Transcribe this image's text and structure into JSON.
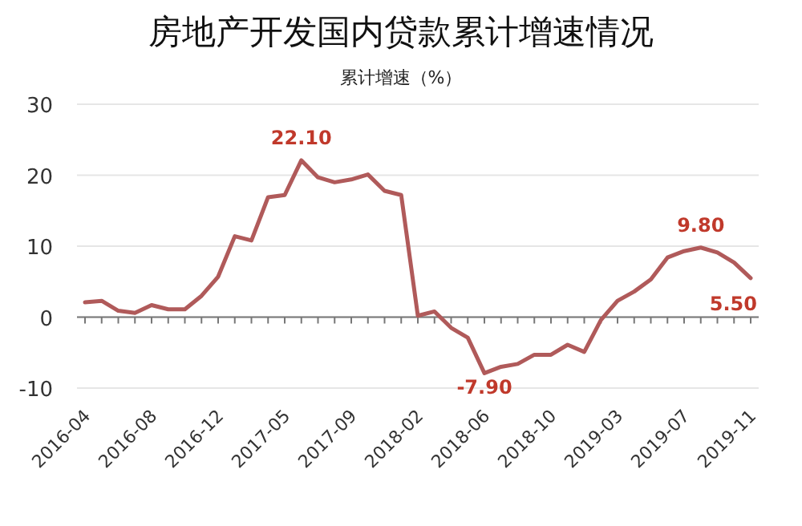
{
  "chart_data": {
    "type": "line",
    "title": "房地产开发国内贷款累计增速情况",
    "ylabel": "累计增速（%）",
    "categories": [
      "2016-04",
      null,
      null,
      null,
      "2016-08",
      null,
      null,
      null,
      "2016-12",
      null,
      null,
      null,
      "2017-05",
      null,
      null,
      null,
      "2017-09",
      null,
      null,
      null,
      "2018-02",
      null,
      null,
      null,
      "2018-06",
      null,
      null,
      null,
      "2018-10",
      null,
      null,
      null,
      "2019-03",
      null,
      null,
      null,
      "2019-07",
      null,
      null,
      null,
      "2019-11"
    ],
    "series": [
      {
        "color": "#b05a5a",
        "values": [
          2.1,
          2.3,
          0.9,
          0.6,
          1.7,
          1.1,
          1.1,
          3.0,
          5.7,
          11.4,
          10.8,
          16.9,
          17.2,
          22.1,
          19.7,
          19.0,
          19.4,
          20.1,
          17.8,
          17.2,
          0.2,
          0.8,
          -1.5,
          -2.9,
          -7.9,
          -7.0,
          -6.6,
          -5.3,
          -5.3,
          -3.9,
          -4.9,
          -0.4,
          2.3,
          3.6,
          5.3,
          8.4,
          9.3,
          9.8,
          9.1,
          7.7,
          5.5
        ],
        "value_labels": [
          null,
          null,
          null,
          null,
          null,
          null,
          null,
          null,
          null,
          null,
          null,
          null,
          null,
          "22.10",
          null,
          null,
          null,
          null,
          null,
          null,
          null,
          null,
          null,
          null,
          "-7.90",
          null,
          null,
          null,
          null,
          null,
          null,
          null,
          null,
          null,
          null,
          null,
          null,
          "9.80",
          null,
          null,
          "5.50"
        ]
      }
    ],
    "ylim": [
      -10,
      30
    ],
    "yticks": [
      -10,
      0,
      10,
      20,
      30
    ],
    "grid": "y",
    "marker": "none",
    "line_style": "solid"
  }
}
